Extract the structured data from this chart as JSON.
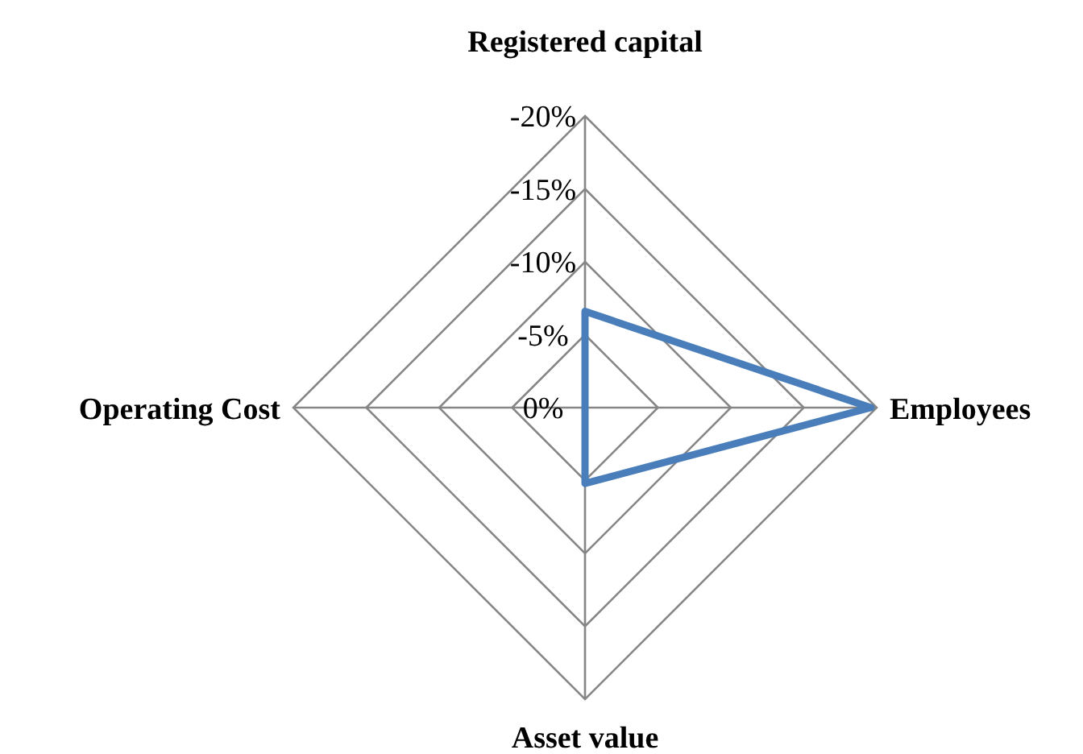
{
  "chart_data": {
    "type": "radar",
    "categories": [
      "Registered capital",
      "Employees",
      "Asset value",
      "Operating Cost"
    ],
    "series": [
      {
        "color": "#4a7ebb",
        "values": [
          -6.6,
          -19.6,
          -5.2,
          0
        ]
      }
    ],
    "ylim": [
      0,
      -20
    ],
    "yticks": [
      {
        "value": -20,
        "label": "-20%"
      },
      {
        "value": -15,
        "label": "-15%"
      },
      {
        "value": -10,
        "label": "-10%"
      },
      {
        "value": -5,
        "label": "-5%"
      },
      {
        "value": 0,
        "label": "0%"
      }
    ],
    "grid": true,
    "line_style": "solid"
  }
}
